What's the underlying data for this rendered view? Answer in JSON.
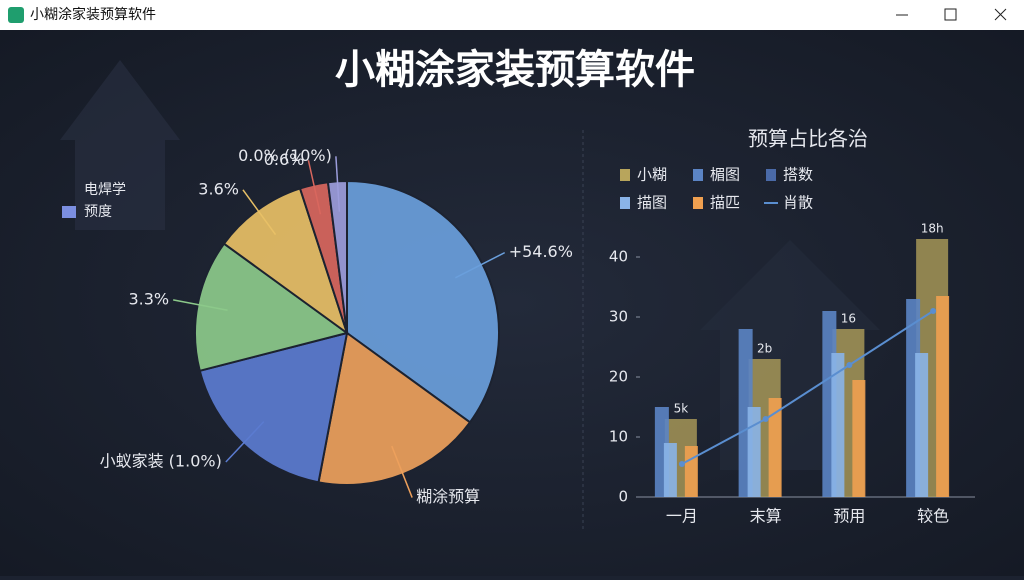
{
  "window": {
    "title": "小糊涂家装预算软件"
  },
  "header": {
    "title": "小糊涂家装预算软件"
  },
  "chart_data": [
    {
      "type": "pie",
      "categories": [
        null,
        null,
        null,
        null,
        null,
        null,
        null
      ],
      "values": [
        35,
        18,
        18,
        14,
        10,
        3,
        2
      ],
      "colors": [
        "#6a9fdc",
        "#eda05c",
        "#5b7bd0",
        "#8cc98a",
        "#e8c066",
        "#d9675e",
        "#9c9ddc"
      ],
      "labels": [
        "+54.6%",
        "糊涂预算",
        "小蚁家装 (1.0%)",
        "3.3%",
        "3.6%",
        "0.6%",
        "0.0% (10%)"
      ],
      "legend": [
        {
          "label": "电焊学"
        },
        {
          "label": "预度",
          "color": "#7b8ee0"
        }
      ]
    },
    {
      "type": "bar",
      "title": "预算占比各治",
      "categories": [
        "一月",
        "末算",
        "预用",
        "较色"
      ],
      "series": [
        {
          "name": "小糊",
          "kind": "bar",
          "color": "#b8a55c",
          "values": [
            13,
            23,
            28,
            43
          ]
        },
        {
          "name": "楣图",
          "kind": "bar",
          "color": "#5b84c4",
          "values": [
            15,
            28,
            31,
            33
          ]
        },
        {
          "name": "搭数",
          "kind": "bar",
          "color": "#4a6aa8",
          "values": [
            null,
            null,
            null,
            null
          ]
        },
        {
          "name": "描图",
          "kind": "bar",
          "color": "#8ab4e8",
          "values": [
            9,
            15,
            24,
            24
          ]
        },
        {
          "name": "描匹",
          "kind": "bar",
          "color": "#f0a050",
          "values": [
            8.5,
            16.5,
            19.5,
            33.5
          ]
        },
        {
          "name": "肖散",
          "kind": "line",
          "color": "#5a8ed0",
          "values": [
            5.5,
            13,
            22,
            31
          ]
        }
      ],
      "annotations": [
        "5k",
        "2b",
        "16",
        "18h"
      ],
      "ylim": [
        0,
        45
      ],
      "yticks": [
        0,
        10,
        20,
        30,
        40
      ]
    }
  ]
}
